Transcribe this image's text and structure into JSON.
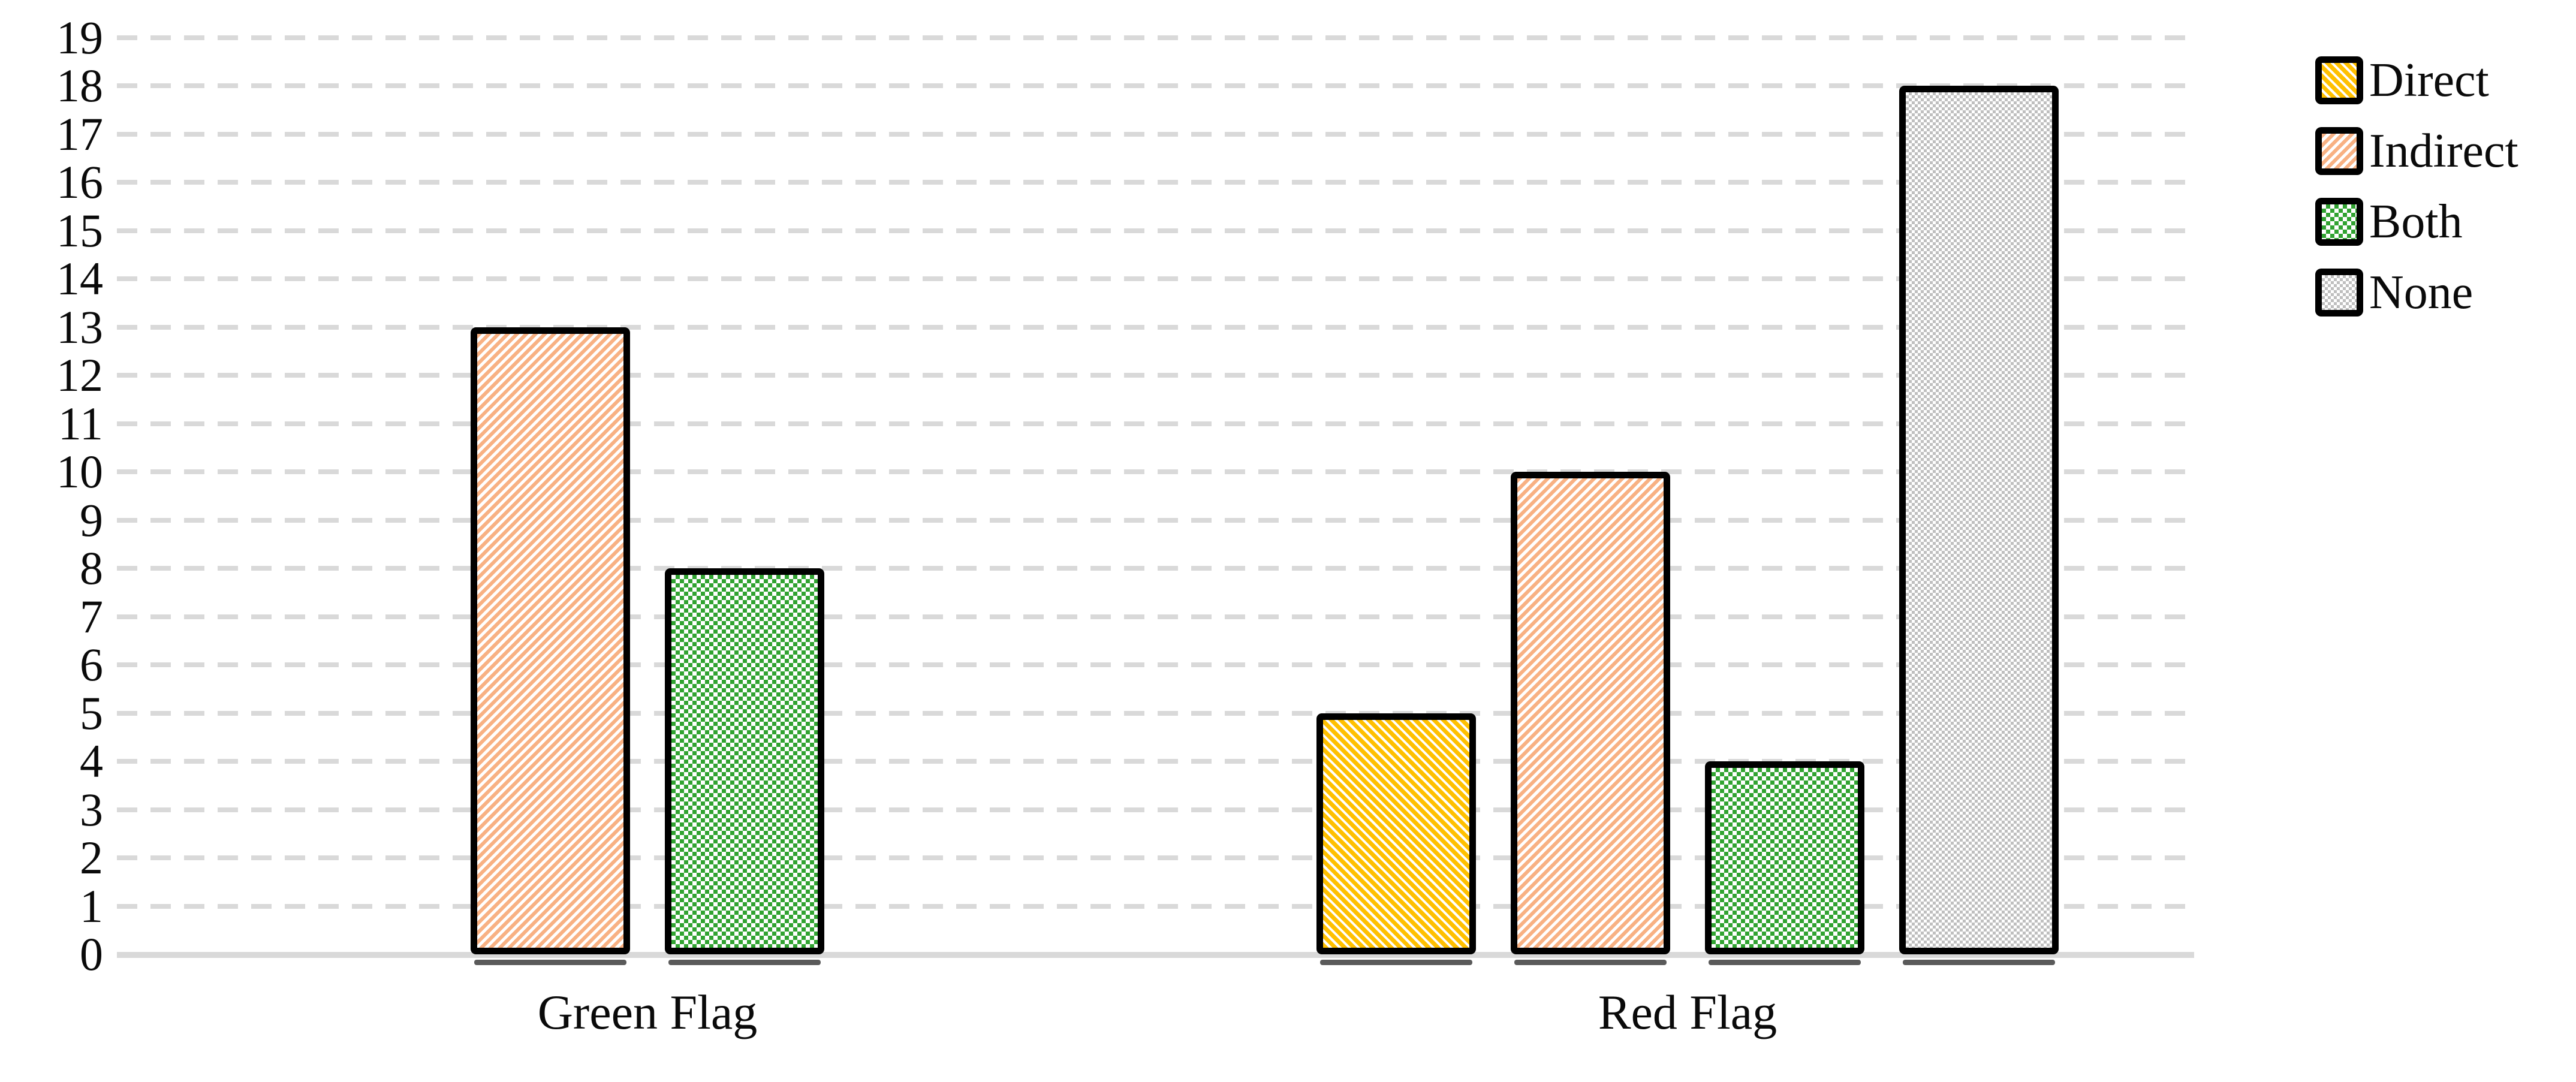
{
  "chart_data": {
    "type": "bar",
    "title": "",
    "categories": [
      "Green Flag",
      "Red Flag"
    ],
    "series": [
      {
        "name": "Direct",
        "values": [
          0,
          5
        ],
        "color": "#FFC000",
        "pattern": "diagonal-stripe-down"
      },
      {
        "name": "Indirect",
        "values": [
          13,
          10
        ],
        "color": "#F8B183",
        "pattern": "diagonal-stripe-up"
      },
      {
        "name": "Both",
        "values": [
          8,
          4
        ],
        "color": "#31A331",
        "pattern": "checkerboard"
      },
      {
        "name": "None",
        "values": [
          0,
          18
        ],
        "color": "#BFBFBF",
        "pattern": "fine-checkerboard"
      }
    ],
    "ylim": [
      0,
      19
    ],
    "ytick_step": 1,
    "ytick_labels": [
      "0",
      "1",
      "2",
      "3",
      "4",
      "5",
      "6",
      "7",
      "8",
      "9",
      "10",
      "11",
      "12",
      "13",
      "14",
      "15",
      "16",
      "17",
      "18",
      "19"
    ],
    "grid": {
      "horizontal": "dashed",
      "color": "#D9D9D9"
    },
    "axis_line_color": "#D9D9D9",
    "bar_border_color": "#000000",
    "legend": {
      "position": "top-right",
      "entries": [
        "Direct",
        "Indirect",
        "Both",
        "None"
      ]
    }
  }
}
